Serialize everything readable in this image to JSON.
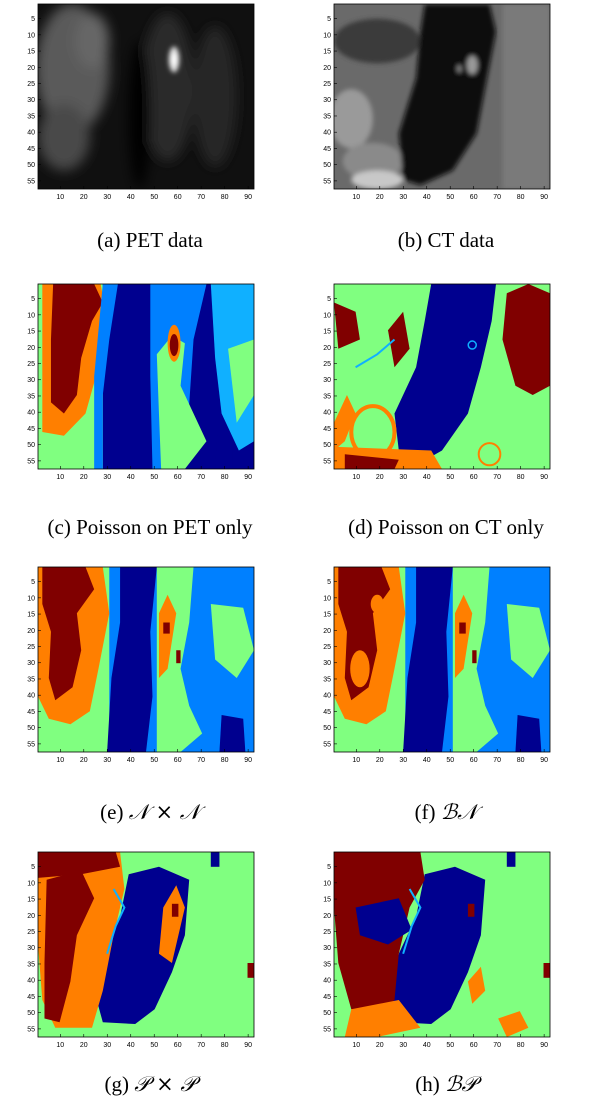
{
  "axes": {
    "y_ticks": [
      "5",
      "10",
      "15",
      "20",
      "25",
      "30",
      "35",
      "40",
      "45",
      "50",
      "55"
    ],
    "x_ticks": [
      "10",
      "20",
      "30",
      "40",
      "50",
      "60",
      "70",
      "80",
      "90"
    ]
  },
  "colors": {
    "dark_blue": "#00008f",
    "mid_blue": "#0080ff",
    "light_blue": "#10b0ff",
    "green": "#80ff80",
    "orange": "#ff7f00",
    "dark_red": "#800000"
  },
  "figures": [
    {
      "id": "a",
      "caption_prefix": "(a) ",
      "caption_main": "PET data",
      "caption_math": "",
      "kind": "pet"
    },
    {
      "id": "b",
      "caption_prefix": "(b) ",
      "caption_main": "CT data",
      "caption_math": "",
      "kind": "ct"
    },
    {
      "id": "c",
      "caption_prefix": "(c) ",
      "caption_main": "Poisson on PET only",
      "caption_math": "",
      "kind": "seg_pet"
    },
    {
      "id": "d",
      "caption_prefix": "(d) ",
      "caption_main": "Poisson on CT only",
      "caption_math": "",
      "kind": "seg_ct"
    },
    {
      "id": "e",
      "caption_prefix": "(e) ",
      "caption_main": "",
      "caption_math": "𝒩 × 𝒩",
      "kind": "seg_nn"
    },
    {
      "id": "f",
      "caption_prefix": "(f) ",
      "caption_main": "",
      "caption_math": "ℬ𝒩",
      "kind": "seg_bn"
    },
    {
      "id": "g",
      "caption_prefix": "(g) ",
      "caption_main": "",
      "caption_math": "𝒫 × 𝒫",
      "kind": "seg_pp"
    },
    {
      "id": "h",
      "caption_prefix": "(h) ",
      "caption_main": "",
      "caption_math": "ℬ𝒫",
      "kind": "seg_bp"
    }
  ]
}
